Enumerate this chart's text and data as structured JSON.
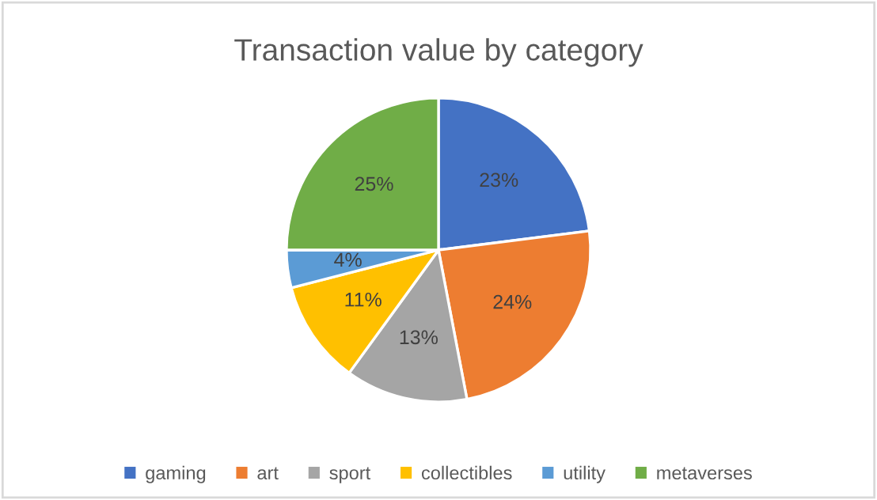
{
  "chart_data": {
    "type": "pie",
    "title": "Transaction value by category",
    "categories": [
      "gaming",
      "art",
      "sport",
      "collectibles",
      "utility",
      "metaverses"
    ],
    "values": [
      23,
      24,
      13,
      11,
      4,
      25
    ],
    "colors": [
      "#4472c4",
      "#ed7d31",
      "#a5a5a5",
      "#ffc000",
      "#5b9bd5",
      "#70ad47"
    ],
    "value_labels": [
      "23%",
      "24%",
      "13%",
      "11%",
      "4%",
      "25%"
    ],
    "legend": "bottom"
  }
}
